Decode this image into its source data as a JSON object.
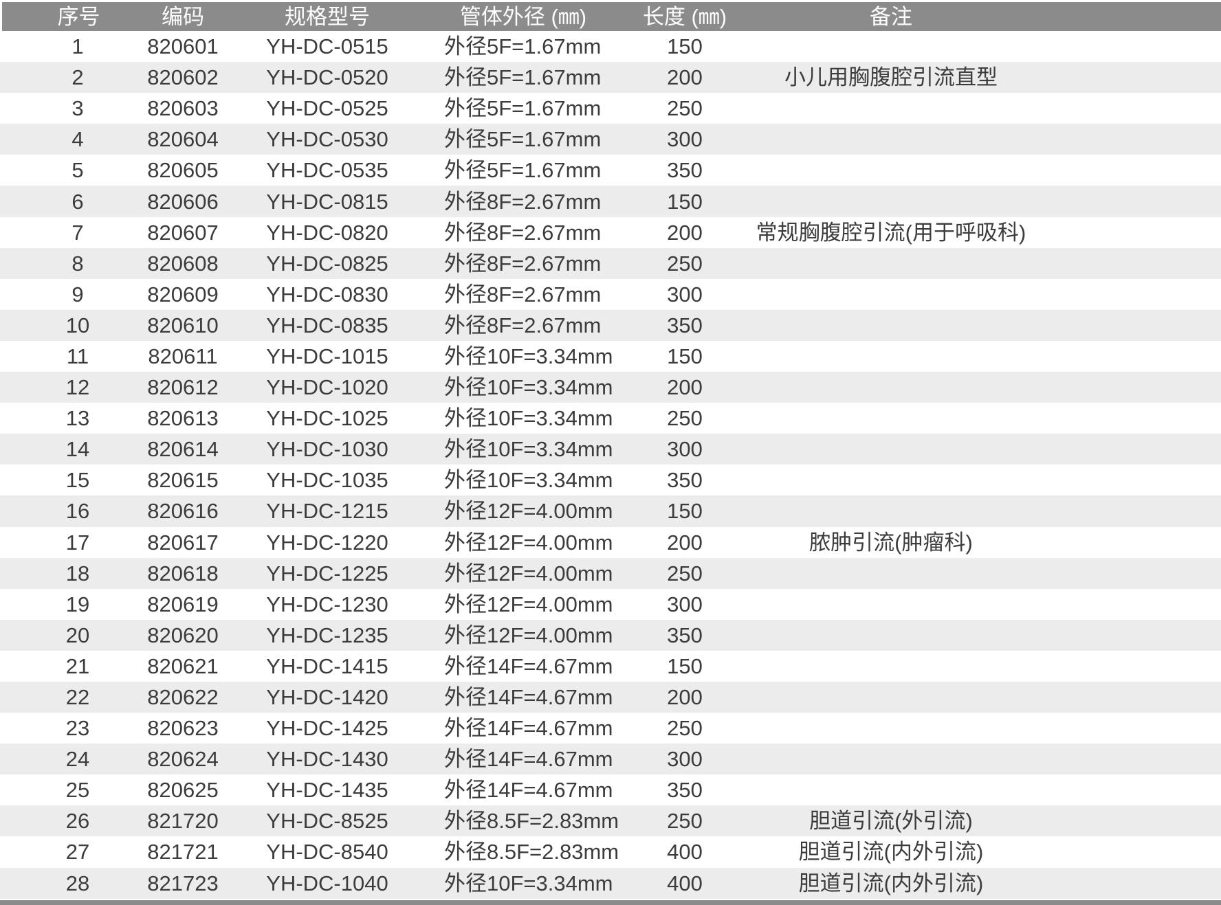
{
  "colors": {
    "header_bg": "#8b8b8b",
    "header_text": "#fdfdfd",
    "stripe_bg": "#ececec",
    "row_bg": "#ffffff",
    "text_color": "#3c3c3c"
  },
  "table": {
    "columns": [
      {
        "key": "index",
        "label": "序号"
      },
      {
        "key": "code",
        "label": "编码"
      },
      {
        "key": "model",
        "label": "规格型号"
      },
      {
        "key": "od",
        "label": "管体外径 (㎜)"
      },
      {
        "key": "length",
        "label": "长度 (㎜)"
      },
      {
        "key": "remark",
        "label": "备注"
      }
    ],
    "rows": [
      {
        "index": "1",
        "code": "820601",
        "model": "YH-DC-0515",
        "od": "外径5F=1.67mm",
        "length": "150",
        "remark": ""
      },
      {
        "index": "2",
        "code": "820602",
        "model": "YH-DC-0520",
        "od": "外径5F=1.67mm",
        "length": "200",
        "remark": "小儿用胸腹腔引流直型"
      },
      {
        "index": "3",
        "code": "820603",
        "model": "YH-DC-0525",
        "od": "外径5F=1.67mm",
        "length": "250",
        "remark": ""
      },
      {
        "index": "4",
        "code": "820604",
        "model": "YH-DC-0530",
        "od": "外径5F=1.67mm",
        "length": "300",
        "remark": ""
      },
      {
        "index": "5",
        "code": "820605",
        "model": "YH-DC-0535",
        "od": "外径5F=1.67mm",
        "length": "350",
        "remark": ""
      },
      {
        "index": "6",
        "code": "820606",
        "model": "YH-DC-0815",
        "od": "外径8F=2.67mm",
        "length": "150",
        "remark": ""
      },
      {
        "index": "7",
        "code": "820607",
        "model": "YH-DC-0820",
        "od": "外径8F=2.67mm",
        "length": "200",
        "remark": "常规胸腹腔引流(用于呼吸科)"
      },
      {
        "index": "8",
        "code": "820608",
        "model": "YH-DC-0825",
        "od": "外径8F=2.67mm",
        "length": "250",
        "remark": ""
      },
      {
        "index": "9",
        "code": "820609",
        "model": "YH-DC-0830",
        "od": "外径8F=2.67mm",
        "length": "300",
        "remark": ""
      },
      {
        "index": "10",
        "code": "820610",
        "model": "YH-DC-0835",
        "od": "外径8F=2.67mm",
        "length": "350",
        "remark": ""
      },
      {
        "index": "11",
        "code": "820611",
        "model": "YH-DC-1015",
        "od": "外径10F=3.34mm",
        "length": "150",
        "remark": ""
      },
      {
        "index": "12",
        "code": "820612",
        "model": "YH-DC-1020",
        "od": "外径10F=3.34mm",
        "length": "200",
        "remark": ""
      },
      {
        "index": "13",
        "code": "820613",
        "model": "YH-DC-1025",
        "od": "外径10F=3.34mm",
        "length": "250",
        "remark": ""
      },
      {
        "index": "14",
        "code": "820614",
        "model": "YH-DC-1030",
        "od": "外径10F=3.34mm",
        "length": "300",
        "remark": ""
      },
      {
        "index": "15",
        "code": "820615",
        "model": "YH-DC-1035",
        "od": "外径10F=3.34mm",
        "length": "350",
        "remark": ""
      },
      {
        "index": "16",
        "code": "820616",
        "model": "YH-DC-1215",
        "od": "外径12F=4.00mm",
        "length": "150",
        "remark": ""
      },
      {
        "index": "17",
        "code": "820617",
        "model": "YH-DC-1220",
        "od": "外径12F=4.00mm",
        "length": "200",
        "remark": "脓肿引流(肿瘤科)"
      },
      {
        "index": "18",
        "code": "820618",
        "model": "YH-DC-1225",
        "od": "外径12F=4.00mm",
        "length": "250",
        "remark": ""
      },
      {
        "index": "19",
        "code": "820619",
        "model": "YH-DC-1230",
        "od": "外径12F=4.00mm",
        "length": "300",
        "remark": ""
      },
      {
        "index": "20",
        "code": "820620",
        "model": "YH-DC-1235",
        "od": "外径12F=4.00mm",
        "length": "350",
        "remark": ""
      },
      {
        "index": "21",
        "code": "820621",
        "model": "YH-DC-1415",
        "od": "外径14F=4.67mm",
        "length": "150",
        "remark": ""
      },
      {
        "index": "22",
        "code": "820622",
        "model": "YH-DC-1420",
        "od": "外径14F=4.67mm",
        "length": "200",
        "remark": ""
      },
      {
        "index": "23",
        "code": "820623",
        "model": "YH-DC-1425",
        "od": "外径14F=4.67mm",
        "length": "250",
        "remark": ""
      },
      {
        "index": "24",
        "code": "820624",
        "model": "YH-DC-1430",
        "od": "外径14F=4.67mm",
        "length": "300",
        "remark": ""
      },
      {
        "index": "25",
        "code": "820625",
        "model": "YH-DC-1435",
        "od": "外径14F=4.67mm",
        "length": "350",
        "remark": ""
      },
      {
        "index": "26",
        "code": "821720",
        "model": "YH-DC-8525",
        "od": "外径8.5F=2.83mm",
        "length": "250",
        "remark": "胆道引流(外引流)"
      },
      {
        "index": "27",
        "code": "821721",
        "model": "YH-DC-8540",
        "od": "外径8.5F=2.83mm",
        "length": "400",
        "remark": "胆道引流(内外引流)"
      },
      {
        "index": "28",
        "code": "821723",
        "model": "YH-DC-1040",
        "od": "外径10F=3.34mm",
        "length": "400",
        "remark": "胆道引流(内外引流)"
      }
    ]
  }
}
